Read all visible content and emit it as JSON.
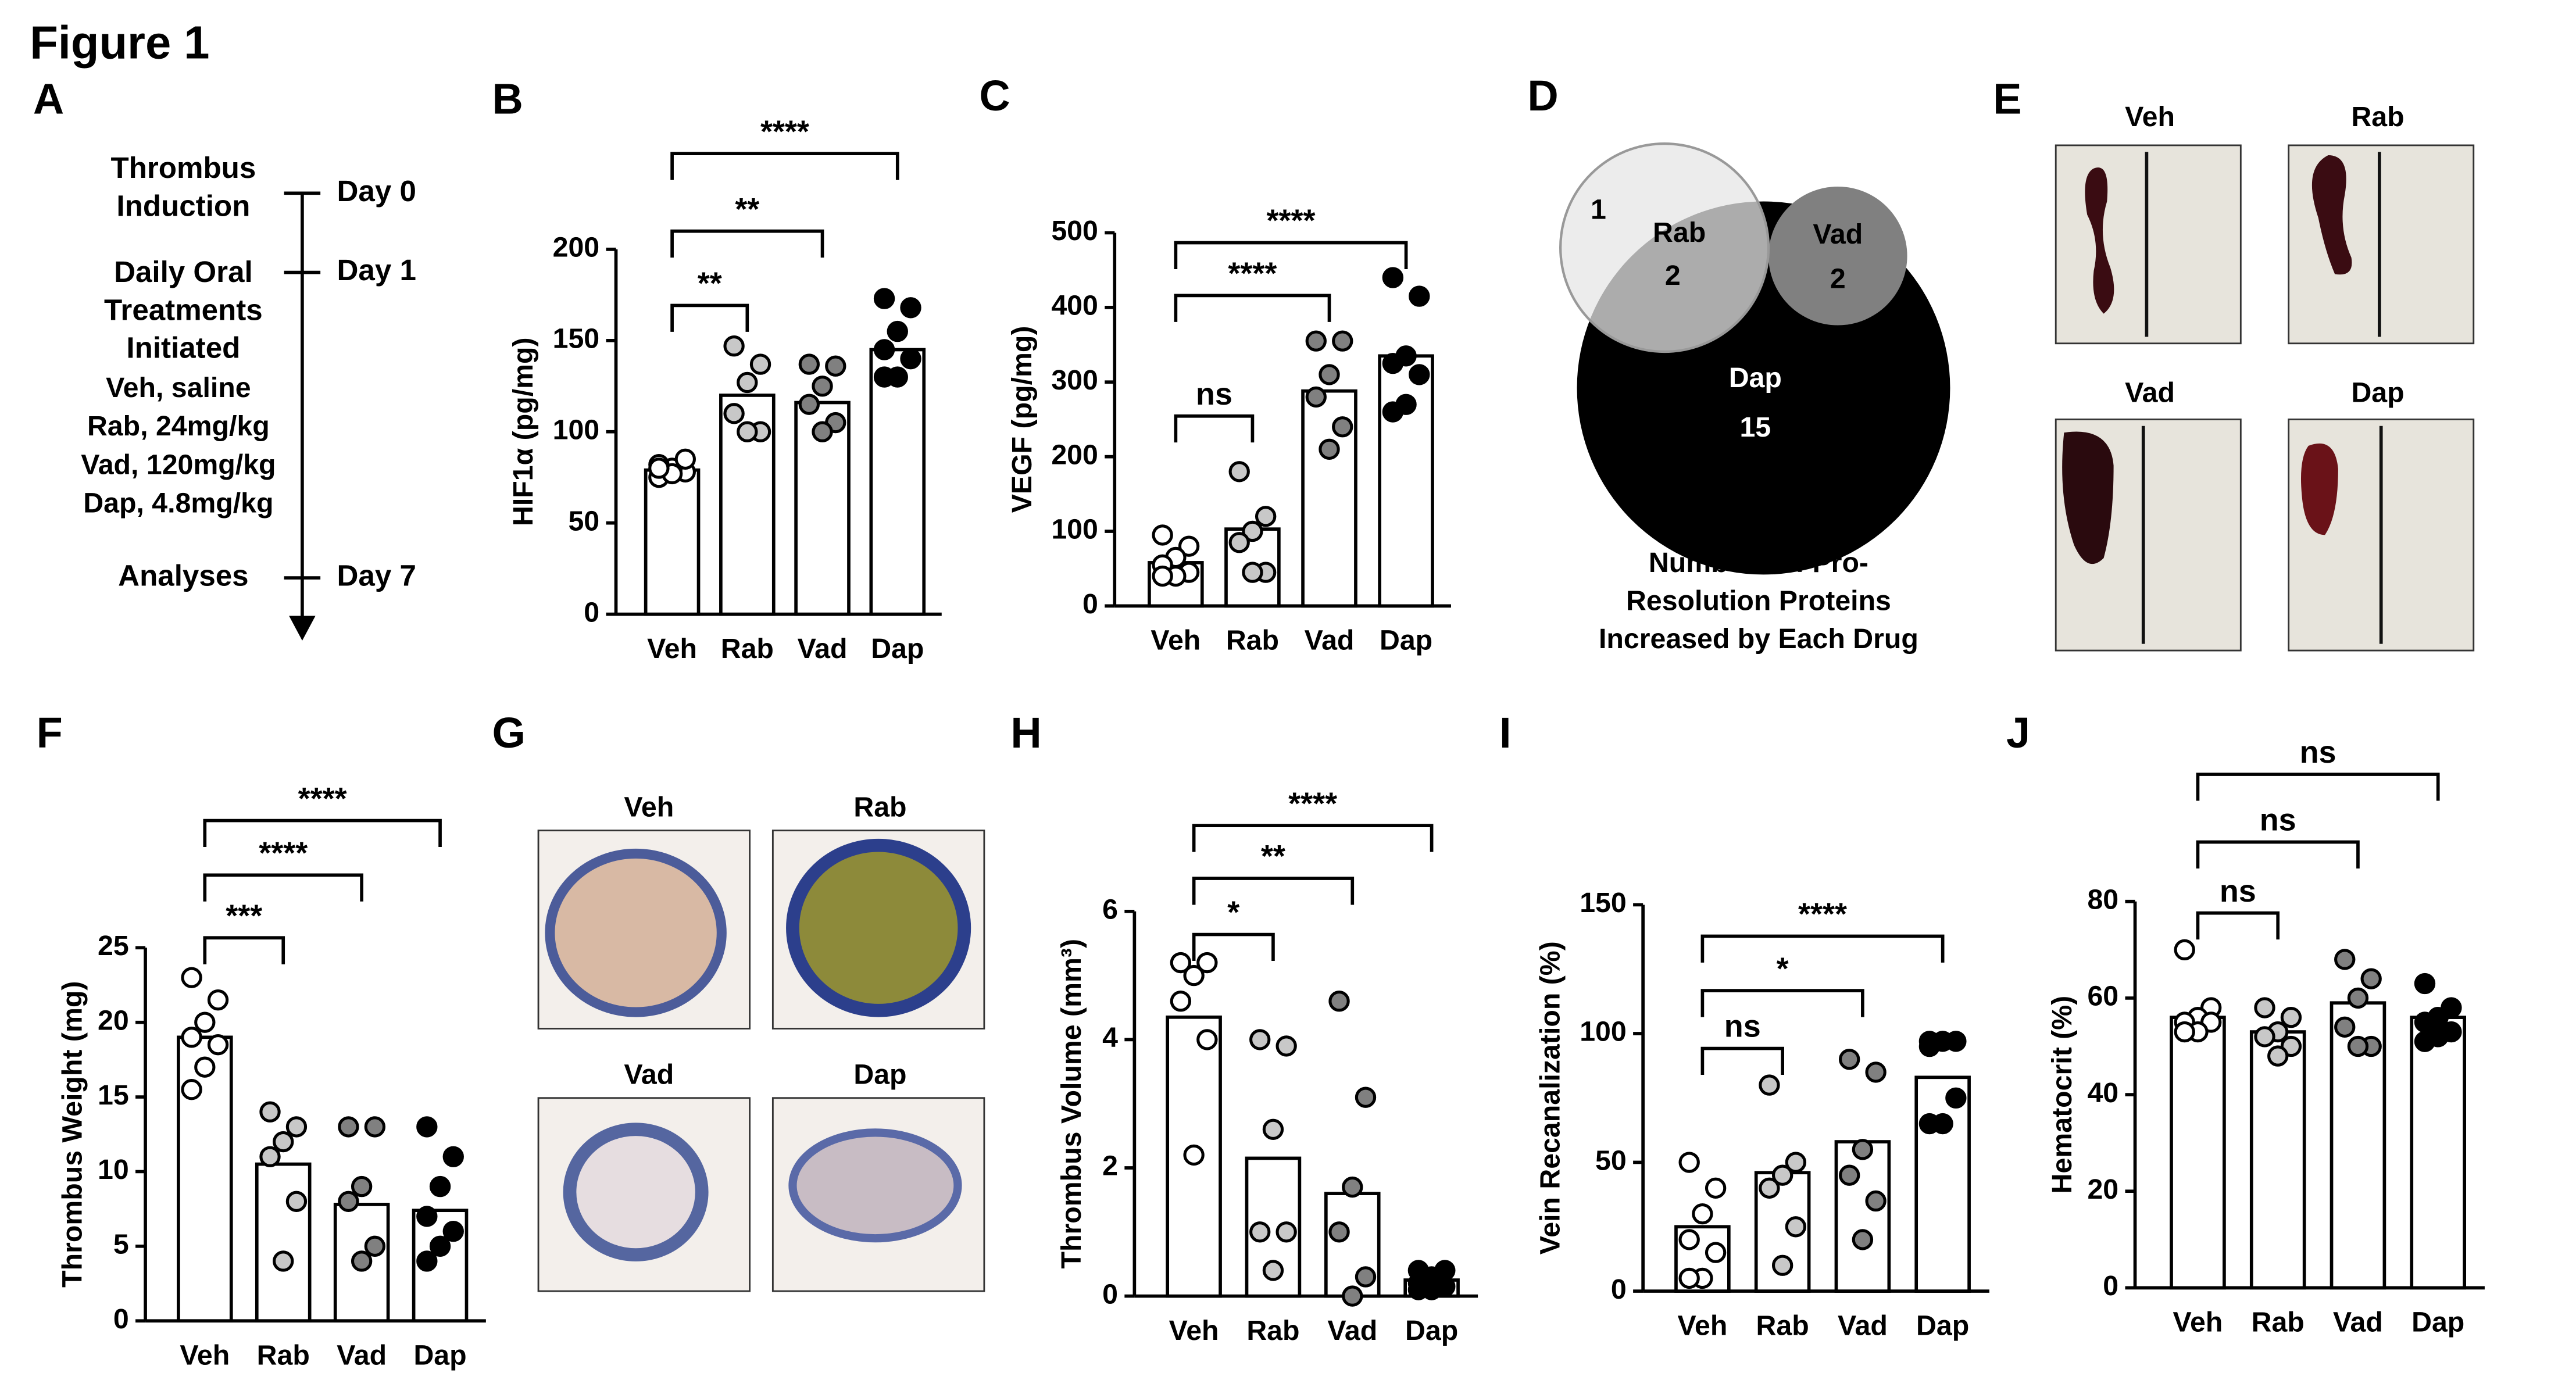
{
  "figure_title": "Figure 1",
  "panel_a": {
    "label": "A",
    "events": [
      {
        "lines": [
          "Thrombus",
          "Induction"
        ],
        "day": "Day 0"
      },
      {
        "lines": [
          "Daily Oral",
          "Treatments",
          "Initiated"
        ],
        "day": "Day 1"
      },
      {
        "lines": [
          "Analyses"
        ],
        "day": "Day 7"
      }
    ],
    "treatments": [
      "Veh, saline",
      "Rab, 24mg/kg",
      "Vad, 120mg/kg",
      "Dap, 4.8mg/kg"
    ]
  },
  "panel_d": {
    "label": "D",
    "regions": [
      {
        "name": "1"
      },
      {
        "name": "Rab",
        "count": "2"
      },
      {
        "name": "Vad",
        "count": "2"
      },
      {
        "name": "Dap",
        "count": "15"
      }
    ],
    "caption": [
      "Numbers of Pro-",
      "Resolution Proteins",
      "Increased by  Each Drug"
    ]
  },
  "panel_e": {
    "label": "E",
    "images": [
      "Veh",
      "Rab",
      "Vad",
      "Dap"
    ]
  },
  "panel_g": {
    "label": "G",
    "images": [
      "Veh",
      "Rab",
      "Vad",
      "Dap"
    ]
  },
  "chart_data": [
    {
      "type": "bar",
      "label": "B",
      "ylabel": "HIF1α (pg/mg)",
      "categories": [
        "Veh",
        "Rab",
        "Vad",
        "Dap"
      ],
      "values": [
        79,
        120,
        116,
        145
      ],
      "points": [
        [
          75,
          78,
          80,
          82,
          85,
          77,
          80
        ],
        [
          147,
          137,
          127,
          110,
          100,
          100
        ],
        [
          137,
          136,
          125,
          115,
          105,
          100
        ],
        [
          173,
          168,
          155,
          145,
          140,
          130,
          130
        ]
      ],
      "bar_color": "#ffffff",
      "point_colors": [
        "#ffffff",
        "#c8c8c8",
        "#808080",
        "#000000"
      ],
      "ylim": [
        0,
        200
      ],
      "yticks": [
        0,
        50,
        100,
        150,
        200
      ],
      "comparisons": [
        {
          "groups": [
            0,
            1
          ],
          "label": "**"
        },
        {
          "groups": [
            0,
            2
          ],
          "label": "**"
        },
        {
          "groups": [
            0,
            3
          ],
          "label": "****"
        }
      ]
    },
    {
      "type": "bar",
      "label": "C",
      "ylabel": "VEGF (pg/mg)",
      "categories": [
        "Veh",
        "Rab",
        "Vad",
        "Dap"
      ],
      "values": [
        58,
        103,
        288,
        335
      ],
      "points": [
        [
          95,
          80,
          65,
          55,
          45,
          40,
          40
        ],
        [
          180,
          120,
          100,
          85,
          45,
          45
        ],
        [
          355,
          355,
          310,
          280,
          240,
          210
        ],
        [
          440,
          415,
          335,
          325,
          310,
          270,
          260
        ]
      ],
      "bar_color": "#ffffff",
      "point_colors": [
        "#ffffff",
        "#c8c8c8",
        "#808080",
        "#000000"
      ],
      "ylim": [
        0,
        500
      ],
      "yticks": [
        0,
        100,
        200,
        300,
        400,
        500
      ],
      "comparisons": [
        {
          "groups": [
            0,
            1
          ],
          "label": "ns"
        },
        {
          "groups": [
            0,
            2
          ],
          "label": "****"
        },
        {
          "groups": [
            0,
            3
          ],
          "label": "****"
        }
      ]
    },
    {
      "type": "bar",
      "label": "F",
      "ylabel": "Thrombus Weight (mg)",
      "categories": [
        "Veh",
        "Rab",
        "Vad",
        "Dap"
      ],
      "values": [
        19,
        10.5,
        7.8,
        7.4
      ],
      "points": [
        [
          23,
          21.5,
          20,
          19,
          18.5,
          17,
          15.5
        ],
        [
          14,
          13,
          12,
          11,
          8,
          4
        ],
        [
          13,
          13,
          9,
          8,
          5,
          4
        ],
        [
          13,
          11,
          9,
          7,
          6,
          5,
          4
        ]
      ],
      "bar_color": "#ffffff",
      "point_colors": [
        "#ffffff",
        "#c8c8c8",
        "#808080",
        "#000000"
      ],
      "ylim": [
        0,
        25
      ],
      "yticks": [
        0,
        5,
        10,
        15,
        20,
        25
      ],
      "comparisons": [
        {
          "groups": [
            0,
            1
          ],
          "label": "***"
        },
        {
          "groups": [
            0,
            2
          ],
          "label": "****"
        },
        {
          "groups": [
            0,
            3
          ],
          "label": "****"
        }
      ]
    },
    {
      "type": "bar",
      "label": "H",
      "ylabel": "Thrombus Volume (mm³)",
      "categories": [
        "Veh",
        "Rab",
        "Vad",
        "Dap"
      ],
      "values": [
        4.35,
        2.15,
        1.6,
        0.25
      ],
      "points": [
        [
          5.2,
          5.2,
          5.0,
          4.6,
          4.0,
          2.2
        ],
        [
          4.0,
          3.9,
          2.6,
          1.0,
          1.0,
          0.4
        ],
        [
          4.6,
          3.1,
          1.7,
          1.0,
          0.3,
          0.0
        ],
        [
          0.4,
          0.4,
          0.3,
          0.2,
          0.15,
          0.1,
          0.1
        ]
      ],
      "bar_color": "#ffffff",
      "point_colors": [
        "#ffffff",
        "#c8c8c8",
        "#808080",
        "#000000"
      ],
      "ylim": [
        0,
        6
      ],
      "yticks": [
        0,
        2,
        4,
        6
      ],
      "comparisons": [
        {
          "groups": [
            0,
            1
          ],
          "label": "*"
        },
        {
          "groups": [
            0,
            2
          ],
          "label": "**"
        },
        {
          "groups": [
            0,
            3
          ],
          "label": "****"
        }
      ]
    },
    {
      "type": "bar",
      "label": "I",
      "ylabel": "Vein Recanalization (%)",
      "categories": [
        "Veh",
        "Rab",
        "Vad",
        "Dap"
      ],
      "values": [
        25,
        46,
        58,
        83
      ],
      "points": [
        [
          50,
          40,
          30,
          20,
          15,
          5,
          5
        ],
        [
          80,
          50,
          45,
          40,
          25,
          10
        ],
        [
          90,
          85,
          55,
          45,
          35,
          20
        ],
        [
          97,
          97,
          97,
          95,
          75,
          65,
          65
        ]
      ],
      "bar_color": "#ffffff",
      "point_colors": [
        "#ffffff",
        "#c8c8c8",
        "#808080",
        "#000000"
      ],
      "ylim": [
        0,
        150
      ],
      "yticks": [
        0,
        50,
        100,
        150
      ],
      "comparisons": [
        {
          "groups": [
            0,
            1
          ],
          "label": "ns"
        },
        {
          "groups": [
            0,
            2
          ],
          "label": "*"
        },
        {
          "groups": [
            0,
            3
          ],
          "label": "****"
        }
      ]
    },
    {
      "type": "bar",
      "label": "J",
      "ylabel": "Hematocrit (%)",
      "categories": [
        "Veh",
        "Rab",
        "Vad",
        "Dap"
      ],
      "values": [
        56,
        53,
        59,
        56
      ],
      "points": [
        [
          70,
          58,
          56,
          55,
          55,
          53,
          53
        ],
        [
          58,
          56,
          53,
          52,
          50,
          48
        ],
        [
          68,
          64,
          60,
          54,
          50,
          50
        ],
        [
          63,
          58,
          56,
          55,
          53,
          52,
          51
        ]
      ],
      "bar_color": "#ffffff",
      "point_colors": [
        "#ffffff",
        "#c8c8c8",
        "#808080",
        "#000000"
      ],
      "ylim": [
        0,
        80
      ],
      "yticks": [
        0,
        20,
        40,
        60,
        80
      ],
      "comparisons": [
        {
          "groups": [
            0,
            1
          ],
          "label": "ns"
        },
        {
          "groups": [
            0,
            2
          ],
          "label": "ns"
        },
        {
          "groups": [
            0,
            3
          ],
          "label": "ns"
        }
      ]
    }
  ]
}
